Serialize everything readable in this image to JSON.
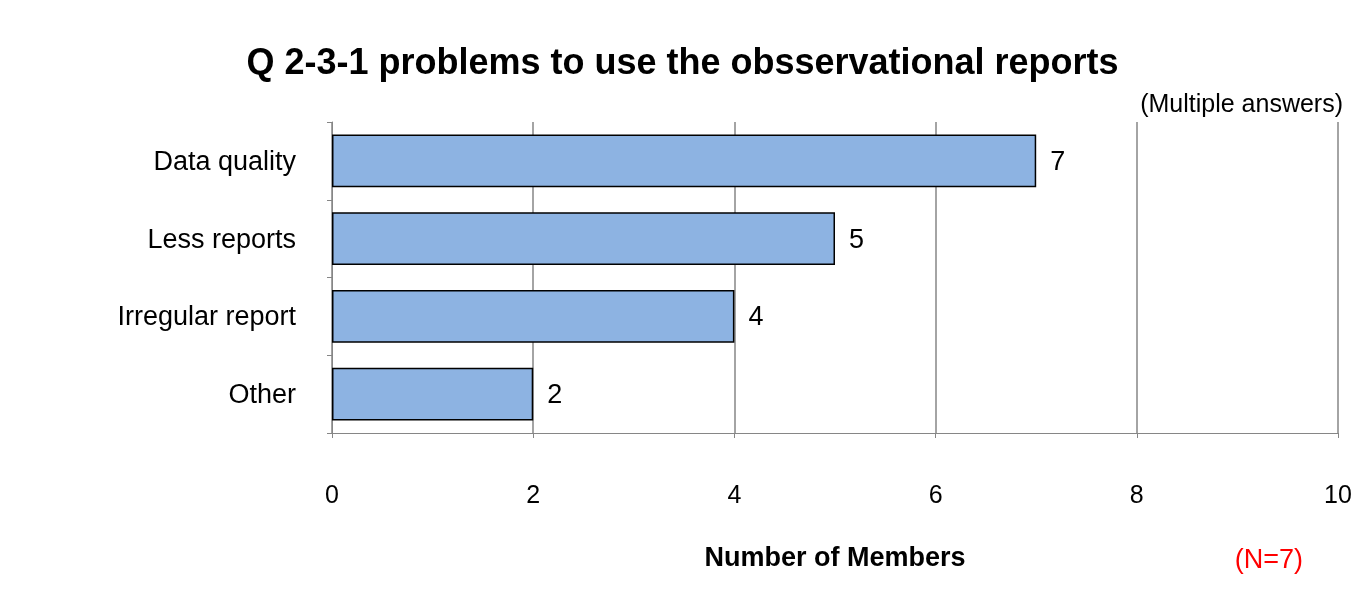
{
  "chart_data": {
    "type": "bar",
    "orientation": "horizontal",
    "title": "Q 2-3-1 problems to use the obsservational reports",
    "xlabel": "Number of Members",
    "categories": [
      "Data quality",
      "Less reports",
      "Irregular report",
      "Other"
    ],
    "values": [
      7,
      5,
      4,
      2
    ],
    "color": "#8db3e2",
    "xlim": [
      0,
      10
    ],
    "xticks": [
      0,
      2,
      4,
      6,
      8,
      10
    ],
    "grid": "x",
    "data_labels": true,
    "annotations": [
      "(Multiple answers)",
      "(N=7)"
    ]
  }
}
